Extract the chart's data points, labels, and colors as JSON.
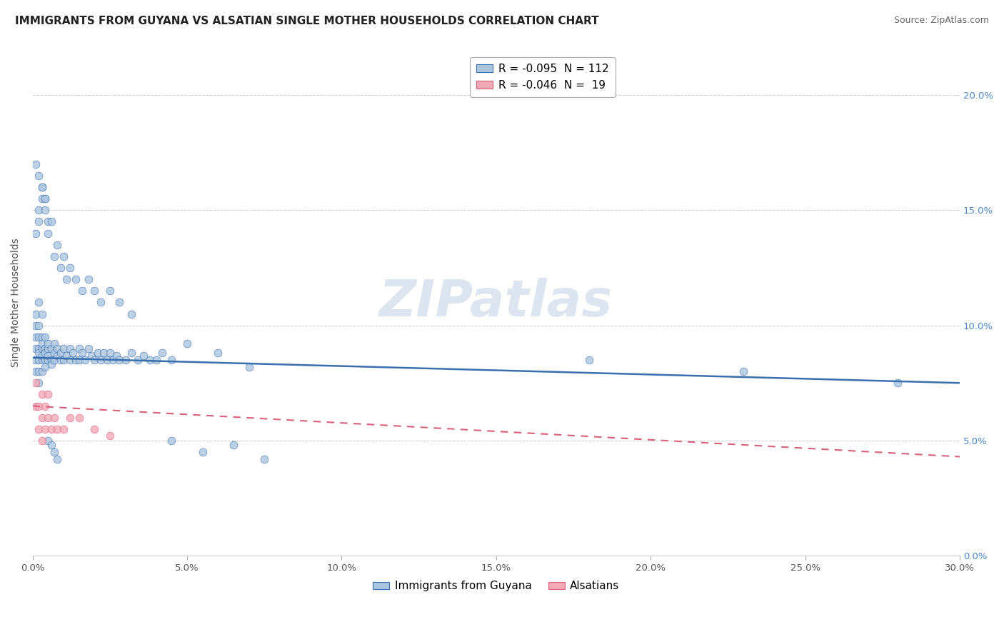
{
  "title": "IMMIGRANTS FROM GUYANA VS ALSATIAN SINGLE MOTHER HOUSEHOLDS CORRELATION CHART",
  "source": "Source: ZipAtlas.com",
  "ylabel": "Single Mother Households",
  "xlim": [
    0.0,
    0.3
  ],
  "ylim": [
    0.0,
    0.22
  ],
  "xticks": [
    0.0,
    0.05,
    0.1,
    0.15,
    0.2,
    0.25,
    0.3
  ],
  "xtick_labels": [
    "0.0%",
    "5.0%",
    "10.0%",
    "15.0%",
    "20.0%",
    "25.0%",
    "30.0%"
  ],
  "yticks": [
    0.0,
    0.05,
    0.1,
    0.15,
    0.2
  ],
  "ytick_labels": [
    "0.0%",
    "5.0%",
    "10.0%",
    "15.0%",
    "20.0%"
  ],
  "blue_R": -0.095,
  "blue_N": 112,
  "pink_R": -0.046,
  "pink_N": 19,
  "blue_color": "#adc6e0",
  "pink_color": "#f2aab8",
  "blue_line_color": "#3a6faf",
  "pink_line_color": "#d9607a",
  "legend_blue_label": "Immigrants from Guyana",
  "legend_pink_label": "Alsatians",
  "watermark": "ZIPatlas",
  "background_color": "#ffffff",
  "grid_color": "#cccccc",
  "blue_scatter_x": [
    0.001,
    0.001,
    0.001,
    0.001,
    0.001,
    0.001,
    0.002,
    0.002,
    0.002,
    0.002,
    0.002,
    0.002,
    0.002,
    0.002,
    0.003,
    0.003,
    0.003,
    0.003,
    0.003,
    0.003,
    0.003,
    0.004,
    0.004,
    0.004,
    0.004,
    0.004,
    0.005,
    0.005,
    0.005,
    0.005,
    0.006,
    0.006,
    0.006,
    0.007,
    0.007,
    0.007,
    0.008,
    0.008,
    0.009,
    0.009,
    0.01,
    0.01,
    0.011,
    0.012,
    0.012,
    0.013,
    0.014,
    0.015,
    0.015,
    0.016,
    0.017,
    0.018,
    0.019,
    0.02,
    0.021,
    0.022,
    0.023,
    0.024,
    0.025,
    0.026,
    0.027,
    0.028,
    0.03,
    0.032,
    0.034,
    0.036,
    0.038,
    0.04,
    0.042,
    0.045,
    0.001,
    0.002,
    0.002,
    0.003,
    0.003,
    0.004,
    0.004,
    0.005,
    0.005,
    0.006,
    0.007,
    0.008,
    0.009,
    0.01,
    0.011,
    0.012,
    0.014,
    0.016,
    0.018,
    0.02,
    0.022,
    0.025,
    0.028,
    0.032,
    0.001,
    0.002,
    0.003,
    0.004,
    0.005,
    0.006,
    0.007,
    0.008,
    0.045,
    0.055,
    0.065,
    0.075,
    0.18,
    0.23,
    0.28,
    0.05,
    0.06,
    0.07
  ],
  "blue_scatter_y": [
    0.095,
    0.1,
    0.085,
    0.09,
    0.105,
    0.08,
    0.1,
    0.09,
    0.095,
    0.085,
    0.11,
    0.075,
    0.08,
    0.088,
    0.095,
    0.09,
    0.085,
    0.092,
    0.105,
    0.08,
    0.087,
    0.09,
    0.095,
    0.085,
    0.088,
    0.082,
    0.09,
    0.085,
    0.092,
    0.087,
    0.085,
    0.09,
    0.083,
    0.088,
    0.092,
    0.085,
    0.087,
    0.09,
    0.085,
    0.088,
    0.085,
    0.09,
    0.087,
    0.085,
    0.09,
    0.088,
    0.085,
    0.09,
    0.085,
    0.088,
    0.085,
    0.09,
    0.087,
    0.085,
    0.088,
    0.085,
    0.088,
    0.085,
    0.088,
    0.085,
    0.087,
    0.085,
    0.085,
    0.088,
    0.085,
    0.087,
    0.085,
    0.085,
    0.088,
    0.085,
    0.14,
    0.145,
    0.15,
    0.155,
    0.16,
    0.155,
    0.15,
    0.145,
    0.14,
    0.145,
    0.13,
    0.135,
    0.125,
    0.13,
    0.12,
    0.125,
    0.12,
    0.115,
    0.12,
    0.115,
    0.11,
    0.115,
    0.11,
    0.105,
    0.17,
    0.165,
    0.16,
    0.155,
    0.05,
    0.048,
    0.045,
    0.042,
    0.05,
    0.045,
    0.048,
    0.042,
    0.085,
    0.08,
    0.075,
    0.092,
    0.088,
    0.082
  ],
  "pink_scatter_x": [
    0.001,
    0.001,
    0.002,
    0.002,
    0.003,
    0.003,
    0.003,
    0.004,
    0.004,
    0.005,
    0.005,
    0.006,
    0.007,
    0.008,
    0.01,
    0.012,
    0.015,
    0.02,
    0.025
  ],
  "pink_scatter_y": [
    0.075,
    0.065,
    0.065,
    0.055,
    0.07,
    0.06,
    0.05,
    0.065,
    0.055,
    0.06,
    0.07,
    0.055,
    0.06,
    0.055,
    0.055,
    0.06,
    0.06,
    0.055,
    0.052
  ],
  "title_fontsize": 11,
  "source_fontsize": 9,
  "watermark_fontsize": 52,
  "watermark_color": "#dde6f0",
  "legend_fontsize": 11,
  "ylabel_fontsize": 10,
  "tick_fontsize": 9.5,
  "blue_line_start_y": 0.086,
  "blue_line_end_y": 0.075,
  "pink_line_start_y": 0.065,
  "pink_line_end_y": 0.043
}
